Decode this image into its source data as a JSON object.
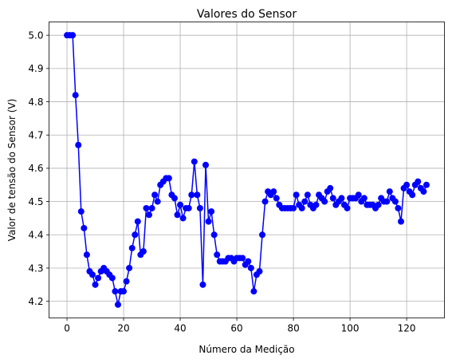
{
  "chart_data": {
    "type": "line",
    "title": "Valores do Sensor",
    "xlabel": "Número da Medição",
    "ylabel": "Valor de tensão do Sensor (V)",
    "xlim": [
      -6.35,
      133.35
    ],
    "ylim": [
      4.15,
      5.04
    ],
    "xticks": [
      0,
      20,
      40,
      60,
      80,
      100,
      120
    ],
    "yticks": [
      4.2,
      4.3,
      4.4,
      4.5,
      4.6,
      4.7,
      4.8,
      4.9,
      5.0
    ],
    "xtick_labels": [
      "0",
      "20",
      "40",
      "60",
      "80",
      "100",
      "120"
    ],
    "ytick_labels": [
      "4.2",
      "4.3",
      "4.4",
      "4.5",
      "4.6",
      "4.7",
      "4.8",
      "4.9",
      "5.0"
    ],
    "grid": true,
    "series": [
      {
        "color": "#0000ff",
        "marker": "circle",
        "x": [
          0,
          1,
          2,
          3,
          4,
          5,
          6,
          7,
          8,
          9,
          10,
          11,
          12,
          13,
          14,
          15,
          16,
          17,
          18,
          19,
          20,
          21,
          22,
          23,
          24,
          25,
          26,
          27,
          28,
          29,
          30,
          31,
          32,
          33,
          34,
          35,
          36,
          37,
          38,
          39,
          40,
          41,
          42,
          43,
          44,
          45,
          46,
          47,
          48,
          49,
          50,
          51,
          52,
          53,
          54,
          55,
          56,
          57,
          58,
          59,
          60,
          61,
          62,
          63,
          64,
          65,
          66,
          67,
          68,
          69,
          70,
          71,
          72,
          73,
          74,
          75,
          76,
          77,
          78,
          79,
          80,
          81,
          82,
          83,
          84,
          85,
          86,
          87,
          88,
          89,
          90,
          91,
          92,
          93,
          94,
          95,
          96,
          97,
          98,
          99,
          100,
          101,
          102,
          103,
          104,
          105,
          106,
          107,
          108,
          109,
          110,
          111,
          112,
          113,
          114,
          115,
          116,
          117,
          118,
          119,
          120,
          121,
          122,
          123,
          124,
          125,
          126,
          127
        ],
        "values": [
          5.0,
          5.0,
          5.0,
          4.82,
          4.67,
          4.47,
          4.42,
          4.34,
          4.29,
          4.28,
          4.25,
          4.27,
          4.29,
          4.3,
          4.29,
          4.28,
          4.27,
          4.23,
          4.19,
          4.23,
          4.23,
          4.26,
          4.3,
          4.36,
          4.4,
          4.44,
          4.34,
          4.35,
          4.48,
          4.46,
          4.48,
          4.52,
          4.5,
          4.55,
          4.56,
          4.57,
          4.57,
          4.52,
          4.51,
          4.46,
          4.49,
          4.45,
          4.48,
          4.48,
          4.52,
          4.62,
          4.52,
          4.48,
          4.25,
          4.61,
          4.44,
          4.47,
          4.4,
          4.34,
          4.32,
          4.32,
          4.32,
          4.33,
          4.33,
          4.32,
          4.33,
          4.33,
          4.33,
          4.31,
          4.32,
          4.3,
          4.23,
          4.28,
          4.29,
          4.4,
          4.5,
          4.53,
          4.52,
          4.53,
          4.51,
          4.49,
          4.48,
          4.48,
          4.48,
          4.48,
          4.48,
          4.52,
          4.49,
          4.48,
          4.5,
          4.52,
          4.49,
          4.48,
          4.49,
          4.52,
          4.51,
          4.5,
          4.53,
          4.54,
          4.51,
          4.49,
          4.5,
          4.51,
          4.49,
          4.48,
          4.51,
          4.51,
          4.51,
          4.52,
          4.5,
          4.51,
          4.49,
          4.49,
          4.49,
          4.48,
          4.49,
          4.51,
          4.5,
          4.5,
          4.53,
          4.51,
          4.5,
          4.48,
          4.44,
          4.54,
          4.55,
          4.53,
          4.52,
          4.55,
          4.56,
          4.54,
          4.53,
          4.55
        ]
      }
    ]
  }
}
